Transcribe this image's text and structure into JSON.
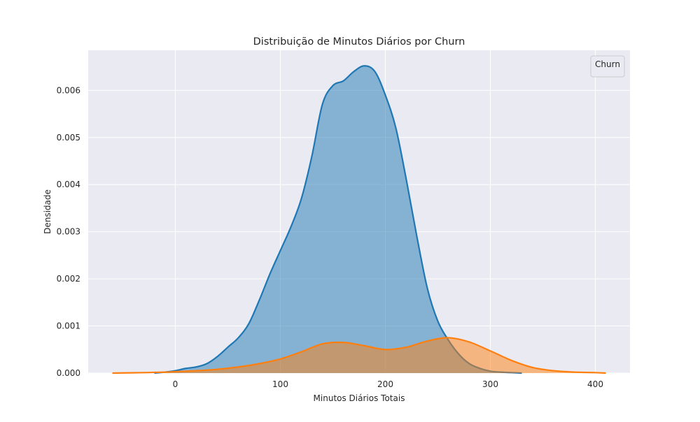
{
  "chart_data": {
    "type": "area",
    "title": "Distribuição de Minutos Diários por Churn",
    "xlabel": "Minutos Diários Totais",
    "ylabel": "Densidade",
    "xlim": [
      -83,
      433
    ],
    "ylim": [
      0,
      0.00685
    ],
    "x_ticks": [
      0,
      100,
      200,
      300,
      400
    ],
    "y_ticks": [
      0,
      0.001,
      0.002,
      0.003,
      0.004,
      0.005,
      0.006
    ],
    "y_tick_labels": [
      "0.000",
      "0.001",
      "0.002",
      "0.003",
      "0.004",
      "0.005",
      "0.006"
    ],
    "grid": true,
    "legend": {
      "title": "Churn",
      "placement": "top-right"
    },
    "colors": {
      "background": "#eaeaf2",
      "grid": "#ffffff",
      "series_0": "#1f77b4",
      "series_1": "#ff7f0e"
    },
    "series": [
      {
        "color": "#1f77b4",
        "x": [
          -20,
          -10,
          0,
          10,
          20,
          30,
          40,
          50,
          60,
          70,
          80,
          90,
          100,
          110,
          120,
          130,
          140,
          150,
          160,
          170,
          180,
          190,
          200,
          210,
          220,
          230,
          240,
          250,
          260,
          270,
          280,
          290,
          300,
          310,
          320,
          330
        ],
        "y": [
          0.0,
          2e-05,
          5e-05,
          0.0001,
          0.00013,
          0.0002,
          0.00035,
          0.00055,
          0.00075,
          0.00105,
          0.00155,
          0.0021,
          0.0026,
          0.0031,
          0.0037,
          0.0046,
          0.0057,
          0.0061,
          0.0062,
          0.0064,
          0.00652,
          0.0064,
          0.0059,
          0.0052,
          0.0041,
          0.0029,
          0.0018,
          0.0011,
          0.0007,
          0.0004,
          0.0002,
          0.0001,
          4e-05,
          2e-05,
          1e-05,
          0.0
        ]
      },
      {
        "color": "#ff7f0e",
        "x": [
          -60,
          -30,
          -10,
          0,
          20,
          40,
          60,
          80,
          100,
          120,
          140,
          160,
          180,
          200,
          220,
          240,
          260,
          280,
          300,
          320,
          340,
          360,
          380,
          400,
          410
        ],
        "y": [
          0.0,
          1e-05,
          2e-05,
          3e-05,
          5e-05,
          8e-05,
          0.00013,
          0.0002,
          0.0003,
          0.00045,
          0.00062,
          0.00065,
          0.00058,
          0.0005,
          0.00055,
          0.00068,
          0.00075,
          0.00066,
          0.00047,
          0.00027,
          0.00012,
          5e-05,
          2e-05,
          1e-05,
          0.0
        ]
      }
    ]
  }
}
